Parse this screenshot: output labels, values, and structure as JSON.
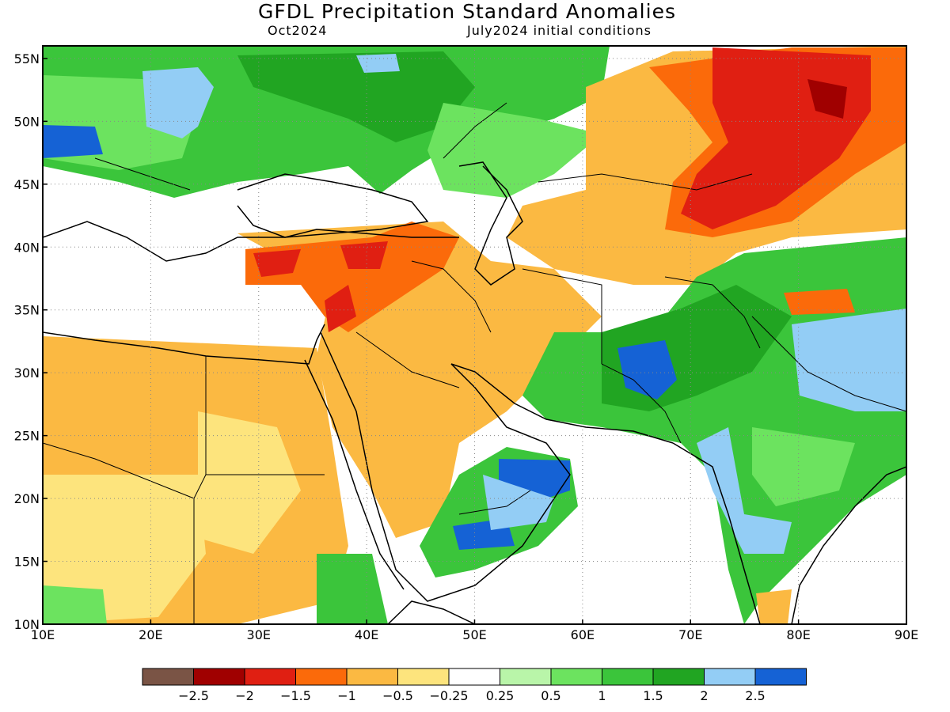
{
  "title": "GFDL Precipitation Standard Anomalies",
  "subtitle_left": "Oct2024",
  "subtitle_right": "July2024 initial conditions",
  "map": {
    "lon_range": [
      10,
      90
    ],
    "lat_range": [
      10,
      56
    ],
    "lon_ticks": [
      "10E",
      "20E",
      "30E",
      "40E",
      "50E",
      "60E",
      "70E",
      "80E",
      "90E"
    ],
    "lat_ticks": [
      "10N",
      "15N",
      "20N",
      "25N",
      "30N",
      "35N",
      "40N",
      "45N",
      "50N",
      "55N"
    ],
    "grid": "dotted"
  },
  "colorbar": {
    "colors": [
      "#7a5445",
      "#a00000",
      "#e01f12",
      "#fb6a0a",
      "#fbb942",
      "#fde47d",
      "#ffffff",
      "#b9f5a9",
      "#6ce35f",
      "#3bc53b",
      "#21a522",
      "#93cdf5",
      "#1562d5"
    ],
    "labels": [
      "−2.5",
      "−2",
      "−1.5",
      "−1",
      "−0.5",
      "−0.25",
      "0.25",
      "0.5",
      "1",
      "1.5",
      "2",
      "2.5"
    ]
  },
  "colors": {
    "ocean": "#ffffff",
    "land_blank": "#ffffff"
  }
}
